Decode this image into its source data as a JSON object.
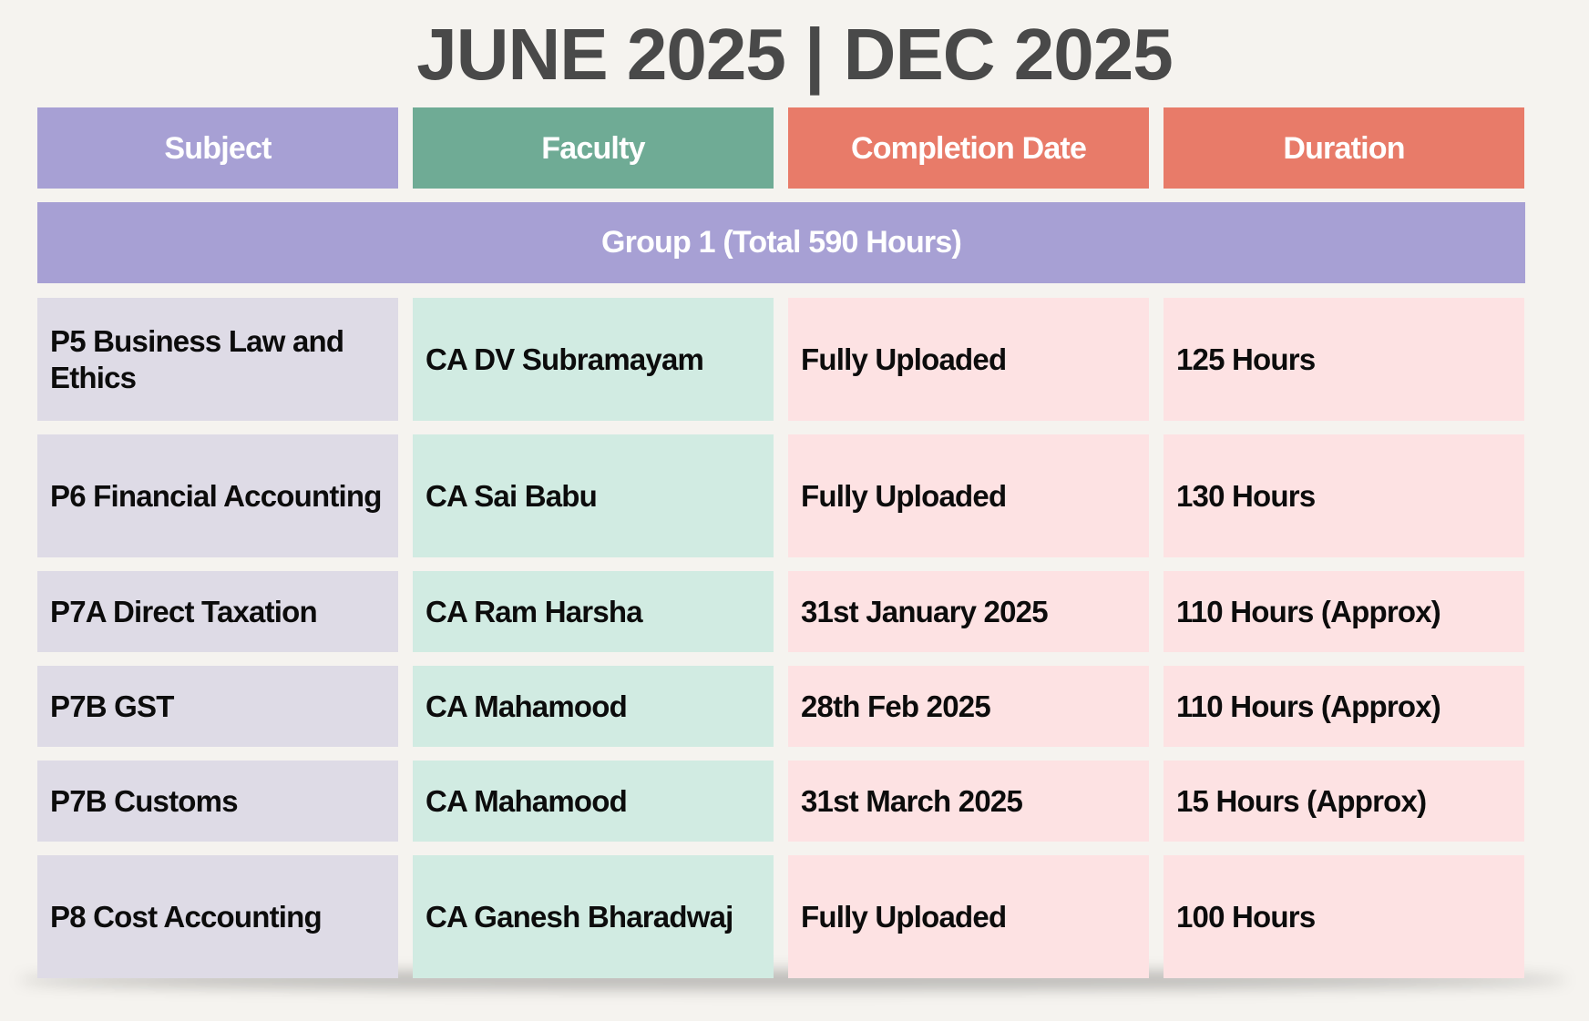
{
  "title": "JUNE 2025 | DEC 2025",
  "headers": [
    "Subject",
    "Faculty",
    "Completion Date",
    "Duration"
  ],
  "colors": {
    "subject_header": "#a7a0d4",
    "faculty_header": "#6fab95",
    "date_header": "#e87b69",
    "duration_header": "#e87b69",
    "subject_cell": "#dedbe6",
    "faculty_cell": "#d1ebe2",
    "date_cell": "#fde2e3",
    "background": "#f5f3ef"
  },
  "group": "Group 1 (Total 590 Hours)",
  "rows": [
    [
      "P5 Business Law and Ethics",
      "CA DV Subramayam",
      "Fully Uploaded",
      "125 Hours"
    ],
    [
      "P6 Financial Accounting",
      "CA Sai Babu",
      "Fully Uploaded",
      "130 Hours"
    ],
    [
      "P7A Direct Taxation",
      "CA Ram Harsha",
      "31st January 2025",
      "110 Hours (Approx)"
    ],
    [
      "P7B GST",
      "CA Mahamood",
      "28th Feb 2025",
      "110 Hours (Approx)"
    ],
    [
      "P7B Customs",
      "CA Mahamood",
      "31st March 2025",
      "15 Hours (Approx)"
    ],
    [
      "P8 Cost Accounting",
      "CA Ganesh Bharadwaj",
      "Fully Uploaded",
      "100 Hours"
    ]
  ]
}
